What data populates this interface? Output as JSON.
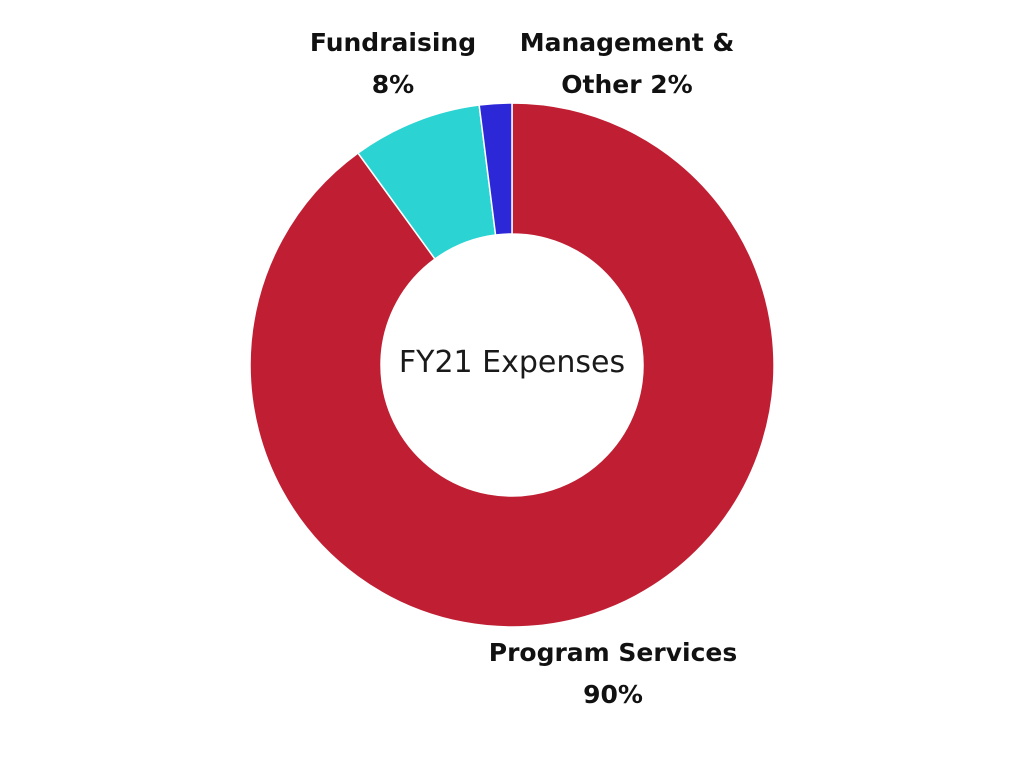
{
  "chart_data": {
    "type": "pie",
    "title": "FY21 Expenses",
    "categories": [
      "Program Services",
      "Fundraising",
      "Management & Other"
    ],
    "values": [
      90,
      8,
      2
    ],
    "unit": "%",
    "donut": true,
    "colors": [
      "#c01f33",
      "#2bd3d3",
      "#2c28d8"
    ],
    "labels": [
      {
        "name": "Program Services",
        "value": "90%"
      },
      {
        "name": "Fundraising",
        "value": "8%"
      },
      {
        "name": "Management &",
        "name_line2": "Other 2%"
      }
    ]
  }
}
